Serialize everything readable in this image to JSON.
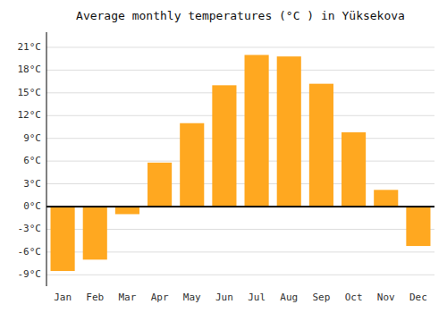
{
  "chart_data": {
    "type": "bar",
    "title": "Average monthly temperatures (°C ) in Yüksekova",
    "categories": [
      "Jan",
      "Feb",
      "Mar",
      "Apr",
      "May",
      "Jun",
      "Jul",
      "Aug",
      "Sep",
      "Oct",
      "Nov",
      "Dec"
    ],
    "values": [
      -8.5,
      -7.0,
      -1.0,
      5.8,
      11.0,
      16.0,
      20.0,
      19.8,
      16.2,
      9.8,
      2.2,
      -5.2
    ],
    "color": "#FFA820",
    "ylim": [
      -10.5,
      23
    ],
    "yticks": [
      {
        "value": -9,
        "label": "-9°C"
      },
      {
        "value": -6,
        "label": "-6°C"
      },
      {
        "value": -3,
        "label": "-3°C"
      },
      {
        "value": 0,
        "label": "0°C"
      },
      {
        "value": 3,
        "label": "3°C"
      },
      {
        "value": 6,
        "label": "6°C"
      },
      {
        "value": 9,
        "label": "9°C"
      },
      {
        "value": 12,
        "label": "12°C"
      },
      {
        "value": 15,
        "label": "15°C"
      },
      {
        "value": 18,
        "label": "18°C"
      },
      {
        "value": 21,
        "label": "21°C"
      }
    ],
    "grid": true
  }
}
